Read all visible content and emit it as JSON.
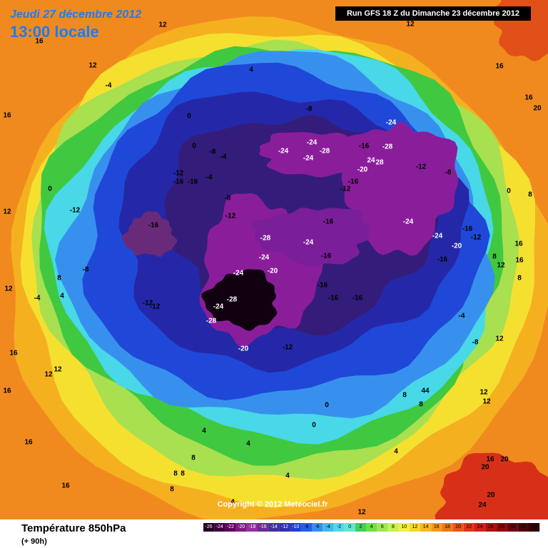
{
  "header": {
    "date": "Jeudi 27 décembre 2012",
    "time": "13:00 locale",
    "run": "Run GFS 18 Z du Dimanche 23 décembre 2012"
  },
  "copyright": "Copyright © 2012 Meteociel.fr",
  "footer": {
    "title": "Température 850hPa",
    "lead": "(+ 90h)"
  },
  "legend": {
    "ticks": [
      -26,
      -24,
      -22,
      -20,
      -18,
      -16,
      -14,
      -12,
      -10,
      -8,
      -6,
      -4,
      -2,
      0,
      2,
      4,
      6,
      8,
      10,
      12,
      14,
      16,
      18,
      20,
      22,
      24,
      26,
      28,
      30,
      32,
      34
    ],
    "colors": [
      "#200020",
      "#400040",
      "#600060",
      "#801880",
      "#9a2aa0",
      "#6a2a9a",
      "#40309a",
      "#3030b0",
      "#2040d0",
      "#2060e8",
      "#3090f0",
      "#40b8f0",
      "#50d8f0",
      "#60e8d0",
      "#40d060",
      "#70e040",
      "#a0e850",
      "#c8f050",
      "#f0f040",
      "#f8d828",
      "#f8b820",
      "#f89820",
      "#f07818",
      "#e85818",
      "#e03818",
      "#d02018",
      "#b01010",
      "#900810",
      "#700010",
      "#500008",
      "#300000"
    ]
  },
  "contour_labels": [
    12,
    16,
    12,
    -4,
    16,
    4,
    -8,
    0,
    0,
    -8,
    -4,
    -24,
    -24,
    -28,
    -24,
    -16,
    -28,
    -24,
    24,
    28,
    -20,
    -12,
    -8,
    -12,
    -16,
    -12,
    -16,
    -16,
    -4,
    -8,
    -12,
    -16,
    -12,
    -16,
    -24,
    -24,
    -16,
    -12,
    -20,
    -16,
    -28,
    -24,
    -16,
    -24,
    -20,
    -24,
    -8,
    -12,
    -12,
    -28,
    -24,
    -28,
    -16,
    -16,
    -16,
    -20,
    -12,
    -8,
    -4,
    12,
    8,
    12,
    16,
    8,
    12,
    8,
    4,
    -4,
    0,
    12,
    16,
    12,
    12,
    16,
    16,
    4,
    4,
    4,
    0,
    0,
    8,
    8,
    8,
    16,
    8,
    4,
    12,
    12,
    16,
    16,
    20,
    0,
    8,
    16,
    12,
    12,
    8,
    44,
    8,
    16,
    20,
    20,
    20,
    24,
    4
  ]
}
